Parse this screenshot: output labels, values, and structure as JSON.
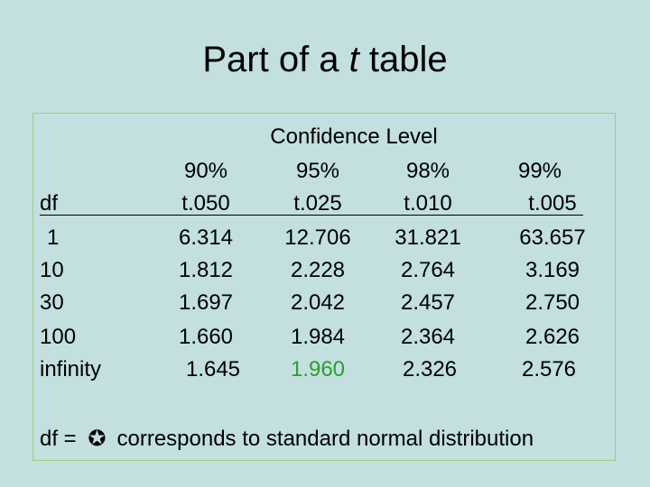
{
  "title": {
    "prefix": "Part of a ",
    "italic": "t",
    "suffix": " table"
  },
  "table": {
    "group_header": "Confidence Level",
    "levels": [
      "90%",
      "95%",
      "98%",
      "99%"
    ],
    "row_header": "df",
    "t_labels": [
      "t.050",
      "t.025",
      "t.010",
      "t.005"
    ],
    "rows": [
      {
        "df": "1",
        "values": [
          "6.314",
          "12.706",
          "31.821",
          "63.657"
        ]
      },
      {
        "df": "10",
        "values": [
          "1.812",
          "2.228",
          "2.764",
          "3.169"
        ]
      },
      {
        "df": "30",
        "values": [
          "1.697",
          "2.042",
          "2.457",
          "2.750"
        ]
      },
      {
        "df": "100",
        "values": [
          "1.660",
          "1.984",
          "2.364",
          "2.626"
        ]
      },
      {
        "df": "infinity",
        "values": [
          "1.645",
          "1.960",
          "2.326",
          "2.576"
        ]
      }
    ],
    "highlight_color": "#2e9e2e"
  },
  "footer": {
    "prefix": "df = ",
    "symbol": "✪",
    "text": "corresponds to standard normal distribution"
  }
}
